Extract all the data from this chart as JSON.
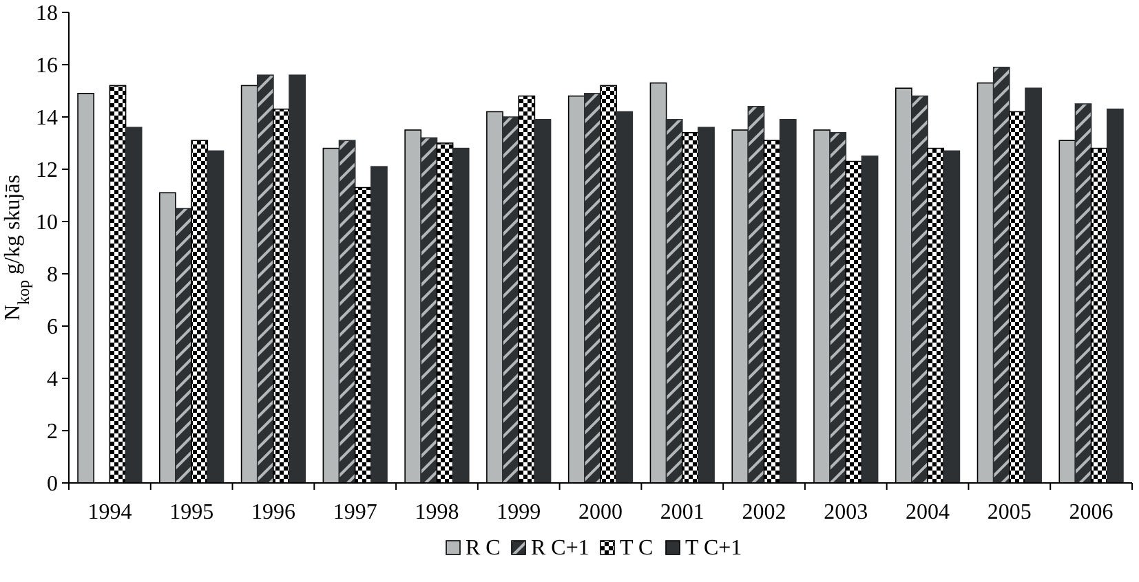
{
  "chart_data": {
    "type": "bar",
    "ylabel": "N$_{kop}$ g/kg skujās",
    "categories": [
      "1994",
      "1995",
      "1996",
      "1997",
      "1998",
      "1999",
      "2000",
      "2001",
      "2002",
      "2003",
      "2004",
      "2005",
      "2006"
    ],
    "series": [
      {
        "name": "R C",
        "color": "#b4b8b8",
        "values": [
          14.9,
          11.1,
          15.2,
          12.8,
          13.5,
          14.2,
          14.8,
          15.3,
          13.5,
          13.5,
          15.1,
          15.3,
          13.1
        ]
      },
      {
        "name": "R C+1",
        "color": "#2d3133",
        "values": [
          null,
          10.5,
          15.6,
          13.1,
          13.2,
          14.0,
          14.9,
          13.9,
          14.4,
          13.4,
          14.8,
          15.9,
          14.5
        ]
      },
      {
        "name": "T C",
        "color": "#000000",
        "values": [
          15.2,
          13.1,
          14.3,
          11.3,
          13.0,
          14.8,
          15.2,
          13.4,
          13.1,
          12.3,
          12.8,
          14.2,
          12.8
        ]
      },
      {
        "name": "T C+1",
        "color": "#2d3133",
        "values": [
          13.6,
          12.7,
          15.6,
          12.1,
          12.8,
          13.9,
          14.2,
          13.6,
          13.9,
          12.5,
          12.7,
          15.1,
          14.3
        ]
      }
    ],
    "ylim": [
      0,
      18
    ],
    "yticks": [
      0,
      2,
      4,
      6,
      8,
      10,
      12,
      14,
      16,
      18
    ],
    "grid": false,
    "legend": "bottom"
  }
}
